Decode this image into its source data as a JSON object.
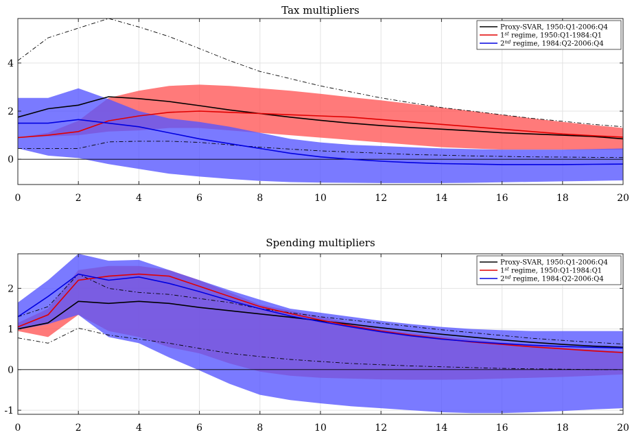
{
  "chart_data": [
    {
      "type": "line",
      "title": "Tax multipliers",
      "xlim": [
        0,
        20
      ],
      "ylim": [
        -1.05,
        5.85
      ],
      "xticks": [
        0,
        2,
        4,
        6,
        8,
        10,
        12,
        14,
        16,
        18,
        20
      ],
      "yticks": [
        0,
        2,
        4
      ],
      "grid": true,
      "legend_location": "top-right",
      "x": [
        0,
        1,
        2,
        3,
        4,
        5,
        6,
        7,
        8,
        9,
        10,
        11,
        12,
        13,
        14,
        15,
        16,
        17,
        18,
        19,
        20
      ],
      "series": [
        {
          "name": "Proxy-SVAR, 1950:Q1-2006:Q4",
          "color": "#000000",
          "values": [
            1.75,
            2.1,
            2.25,
            2.6,
            2.52,
            2.4,
            2.23,
            2.05,
            1.9,
            1.75,
            1.62,
            1.5,
            1.4,
            1.32,
            1.25,
            1.18,
            1.1,
            1.05,
            1.0,
            0.95,
            0.85
          ],
          "upper": [
            4.1,
            5.05,
            5.45,
            5.85,
            5.5,
            5.1,
            4.6,
            4.1,
            3.65,
            3.35,
            3.05,
            2.8,
            2.55,
            2.35,
            2.15,
            2.0,
            1.85,
            1.7,
            1.58,
            1.45,
            1.35
          ],
          "lower": [
            0.45,
            0.45,
            0.45,
            0.72,
            0.75,
            0.75,
            0.7,
            0.6,
            0.5,
            0.42,
            0.35,
            0.3,
            0.25,
            0.2,
            0.17,
            0.14,
            0.12,
            0.1,
            0.09,
            0.08,
            0.07
          ]
        },
        {
          "name": "1st regime, 1950:Q1-1984:Q1",
          "label_main": "1",
          "label_sup": "st",
          "label_rest": " regime, 1950:Q1-1984:Q1",
          "color": "#e00000",
          "band_color": "#ff5555",
          "values": [
            0.9,
            1.0,
            1.15,
            1.6,
            1.8,
            1.95,
            2.0,
            1.95,
            1.9,
            1.85,
            1.8,
            1.75,
            1.65,
            1.55,
            1.45,
            1.35,
            1.25,
            1.15,
            1.05,
            0.98,
            0.92
          ],
          "upper": [
            0.9,
            1.1,
            1.6,
            2.55,
            2.85,
            3.05,
            3.1,
            3.05,
            2.95,
            2.85,
            2.72,
            2.58,
            2.45,
            2.3,
            2.15,
            2.0,
            1.85,
            1.7,
            1.55,
            1.42,
            1.3
          ],
          "lower": [
            0.9,
            0.95,
            1.0,
            1.15,
            1.2,
            1.3,
            1.3,
            1.2,
            1.1,
            1.0,
            0.9,
            0.8,
            0.7,
            0.6,
            0.5,
            0.45,
            0.4,
            0.4,
            0.4,
            0.4,
            0.4
          ]
        },
        {
          "name": "2nd regime, 1984:Q2-2006:Q4",
          "label_main": "2",
          "label_sup": "nd",
          "label_rest": " regime, 1984:Q2-2006:Q4",
          "color": "#0000e0",
          "band_color": "#5555ff",
          "values": [
            1.5,
            1.5,
            1.65,
            1.5,
            1.35,
            1.1,
            0.85,
            0.65,
            0.45,
            0.25,
            0.1,
            0.0,
            -0.08,
            -0.14,
            -0.18,
            -0.2,
            -0.22,
            -0.22,
            -0.22,
            -0.21,
            -0.2
          ],
          "upper": [
            2.55,
            2.55,
            2.95,
            2.5,
            2.0,
            1.7,
            1.55,
            1.35,
            1.1,
            0.85,
            0.7,
            0.6,
            0.55,
            0.5,
            0.45,
            0.42,
            0.4,
            0.4,
            0.4,
            0.42,
            0.45
          ],
          "lower": [
            0.45,
            0.15,
            0.05,
            -0.2,
            -0.4,
            -0.6,
            -0.72,
            -0.82,
            -0.9,
            -0.95,
            -0.97,
            -0.98,
            -0.99,
            -0.99,
            -0.99,
            -0.98,
            -0.96,
            -0.94,
            -0.92,
            -0.9,
            -0.88
          ]
        }
      ]
    },
    {
      "type": "line",
      "title": "Spending multipliers",
      "xlim": [
        0,
        20
      ],
      "ylim": [
        -1.1,
        2.85
      ],
      "xticks": [
        0,
        2,
        4,
        6,
        8,
        10,
        12,
        14,
        16,
        18,
        20
      ],
      "yticks": [
        -1,
        0,
        1,
        2
      ],
      "grid": true,
      "legend_location": "top-right",
      "x": [
        0,
        1,
        2,
        3,
        4,
        5,
        6,
        7,
        8,
        9,
        10,
        11,
        12,
        13,
        14,
        15,
        16,
        17,
        18,
        19,
        20
      ],
      "series": [
        {
          "name": "Proxy-SVAR, 1950:Q1-2006:Q4",
          "color": "#000000",
          "values": [
            1.0,
            1.15,
            1.68,
            1.63,
            1.68,
            1.63,
            1.53,
            1.45,
            1.37,
            1.29,
            1.2,
            1.12,
            1.03,
            0.95,
            0.87,
            0.8,
            0.73,
            0.67,
            0.62,
            0.58,
            0.55
          ],
          "upper": [
            1.3,
            1.55,
            2.35,
            2.0,
            1.9,
            1.85,
            1.75,
            1.65,
            1.5,
            1.4,
            1.3,
            1.22,
            1.14,
            1.06,
            0.98,
            0.91,
            0.84,
            0.77,
            0.72,
            0.67,
            0.63
          ],
          "lower": [
            0.78,
            0.65,
            1.02,
            0.85,
            0.75,
            0.65,
            0.52,
            0.4,
            0.32,
            0.25,
            0.2,
            0.15,
            0.12,
            0.09,
            0.07,
            0.05,
            0.03,
            0.02,
            0.01,
            0.0,
            0.0
          ]
        },
        {
          "name": "1st regime, 1950:Q1-1984:Q1",
          "label_main": "1",
          "label_sup": "st",
          "label_rest": " regime, 1950:Q1-1984:Q1",
          "color": "#e00000",
          "band_color": "#ff5555",
          "values": [
            1.05,
            1.35,
            2.2,
            2.3,
            2.35,
            2.3,
            2.05,
            1.8,
            1.55,
            1.38,
            1.22,
            1.08,
            0.95,
            0.85,
            0.76,
            0.68,
            0.62,
            0.56,
            0.51,
            0.46,
            0.42
          ],
          "upper": [
            1.15,
            1.5,
            2.45,
            2.55,
            2.55,
            2.45,
            2.2,
            1.9,
            1.6,
            1.45,
            1.3,
            1.15,
            1.0,
            0.9,
            0.82,
            0.74,
            0.67,
            0.6,
            0.54,
            0.49,
            0.45
          ],
          "lower": [
            0.95,
            0.8,
            1.35,
            0.95,
            0.8,
            0.55,
            0.4,
            0.15,
            -0.05,
            -0.15,
            -0.2,
            -0.22,
            -0.24,
            -0.25,
            -0.25,
            -0.24,
            -0.22,
            -0.2,
            -0.18,
            -0.15,
            -0.12
          ]
        },
        {
          "name": "2nd regime, 1984:Q2-2006:Q4",
          "label_main": "2",
          "label_sup": "nd",
          "label_rest": " regime, 1984:Q2-2006:Q4",
          "color": "#0000e0",
          "band_color": "#5555ff",
          "values": [
            1.3,
            1.8,
            2.35,
            2.2,
            2.28,
            2.12,
            1.92,
            1.7,
            1.5,
            1.32,
            1.18,
            1.05,
            0.93,
            0.83,
            0.75,
            0.69,
            0.64,
            0.6,
            0.57,
            0.55,
            0.53
          ],
          "upper": [
            1.65,
            2.2,
            2.85,
            2.68,
            2.7,
            2.45,
            2.2,
            1.95,
            1.72,
            1.5,
            1.4,
            1.3,
            1.2,
            1.12,
            1.05,
            1.0,
            0.97,
            0.95,
            0.95,
            0.95,
            0.95
          ],
          "lower": [
            0.98,
            1.12,
            1.35,
            0.8,
            0.65,
            0.3,
            -0.02,
            -0.35,
            -0.62,
            -0.75,
            -0.83,
            -0.9,
            -0.95,
            -1.0,
            -1.05,
            -1.07,
            -1.07,
            -1.05,
            -1.02,
            -0.98,
            -0.95
          ]
        }
      ]
    }
  ]
}
